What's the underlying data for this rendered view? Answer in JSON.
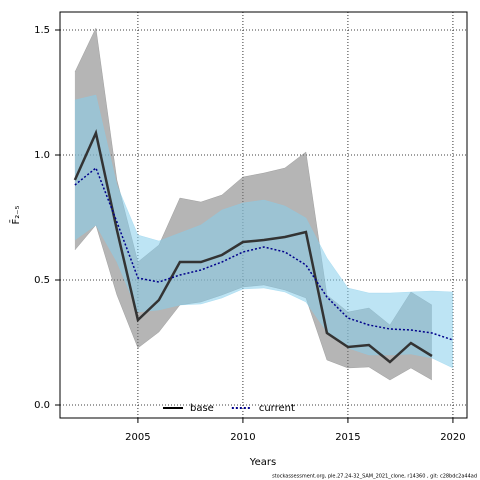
{
  "chart_data": {
    "type": "line",
    "x_label": "Years",
    "y_label": "F̄₂₋₅",
    "footnote": "stockassessment.org, ple.27.24-32_SAM_2021_clone, r14360 , git: c28bdc2a44ad",
    "xlim": [
      2001.29,
      2020.67
    ],
    "ylim": [
      -0.052,
      1.572
    ],
    "xticks": [
      2005,
      2010,
      2015,
      2020
    ],
    "yticks": [
      {
        "value": 0,
        "label": "0.0"
      },
      0.5,
      {
        "value": 1,
        "label": "1.0"
      },
      1.5
    ],
    "grid": true,
    "legend": "bottom",
    "series": [
      {
        "name": "base",
        "color": "#333333",
        "band_color": "rgba(120,120,120,0.55)",
        "dash": false,
        "x": [
          2002,
          2003,
          2004,
          2005,
          2006,
          2007,
          2008,
          2009,
          2010,
          2011,
          2012,
          2013,
          2014,
          2015,
          2016,
          2017,
          2018,
          2019
        ],
        "values": [
          0.9,
          1.088,
          0.7,
          0.34,
          0.42,
          0.572,
          0.572,
          0.6,
          0.652,
          0.66,
          0.672,
          0.692,
          0.288,
          0.232,
          0.24,
          0.172,
          0.248,
          0.196
        ],
        "upper": [
          1.332,
          1.508,
          0.9,
          0.572,
          0.64,
          0.828,
          0.812,
          0.84,
          0.912,
          0.928,
          0.948,
          1.012,
          0.44,
          0.372,
          0.388,
          0.32,
          0.452,
          0.4
        ],
        "lower": [
          0.62,
          0.72,
          0.44,
          0.228,
          0.292,
          0.4,
          0.412,
          0.44,
          0.472,
          0.48,
          0.46,
          0.428,
          0.18,
          0.148,
          0.152,
          0.1,
          0.148,
          0.1
        ]
      },
      {
        "name": "current",
        "color": "#00008b",
        "band_color": "rgba(135,206,235,0.55)",
        "dash": true,
        "x": [
          2002,
          2003,
          2004,
          2005,
          2006,
          2007,
          2008,
          2009,
          2010,
          2011,
          2012,
          2013,
          2014,
          2015,
          2016,
          2017,
          2018,
          2019,
          2020
        ],
        "values": [
          0.88,
          0.948,
          0.732,
          0.508,
          0.492,
          0.52,
          0.54,
          0.572,
          0.612,
          0.632,
          0.612,
          0.56,
          0.432,
          0.348,
          0.32,
          0.304,
          0.3,
          0.288,
          0.26
        ],
        "upper": [
          1.22,
          1.24,
          0.88,
          0.68,
          0.656,
          0.688,
          0.72,
          0.78,
          0.808,
          0.82,
          0.796,
          0.748,
          0.588,
          0.468,
          0.448,
          0.448,
          0.452,
          0.456,
          0.452
        ],
        "lower": [
          0.66,
          0.72,
          0.572,
          0.372,
          0.38,
          0.4,
          0.404,
          0.428,
          0.464,
          0.468,
          0.452,
          0.412,
          0.292,
          0.228,
          0.2,
          0.2,
          0.204,
          0.188,
          0.148
        ]
      }
    ]
  }
}
